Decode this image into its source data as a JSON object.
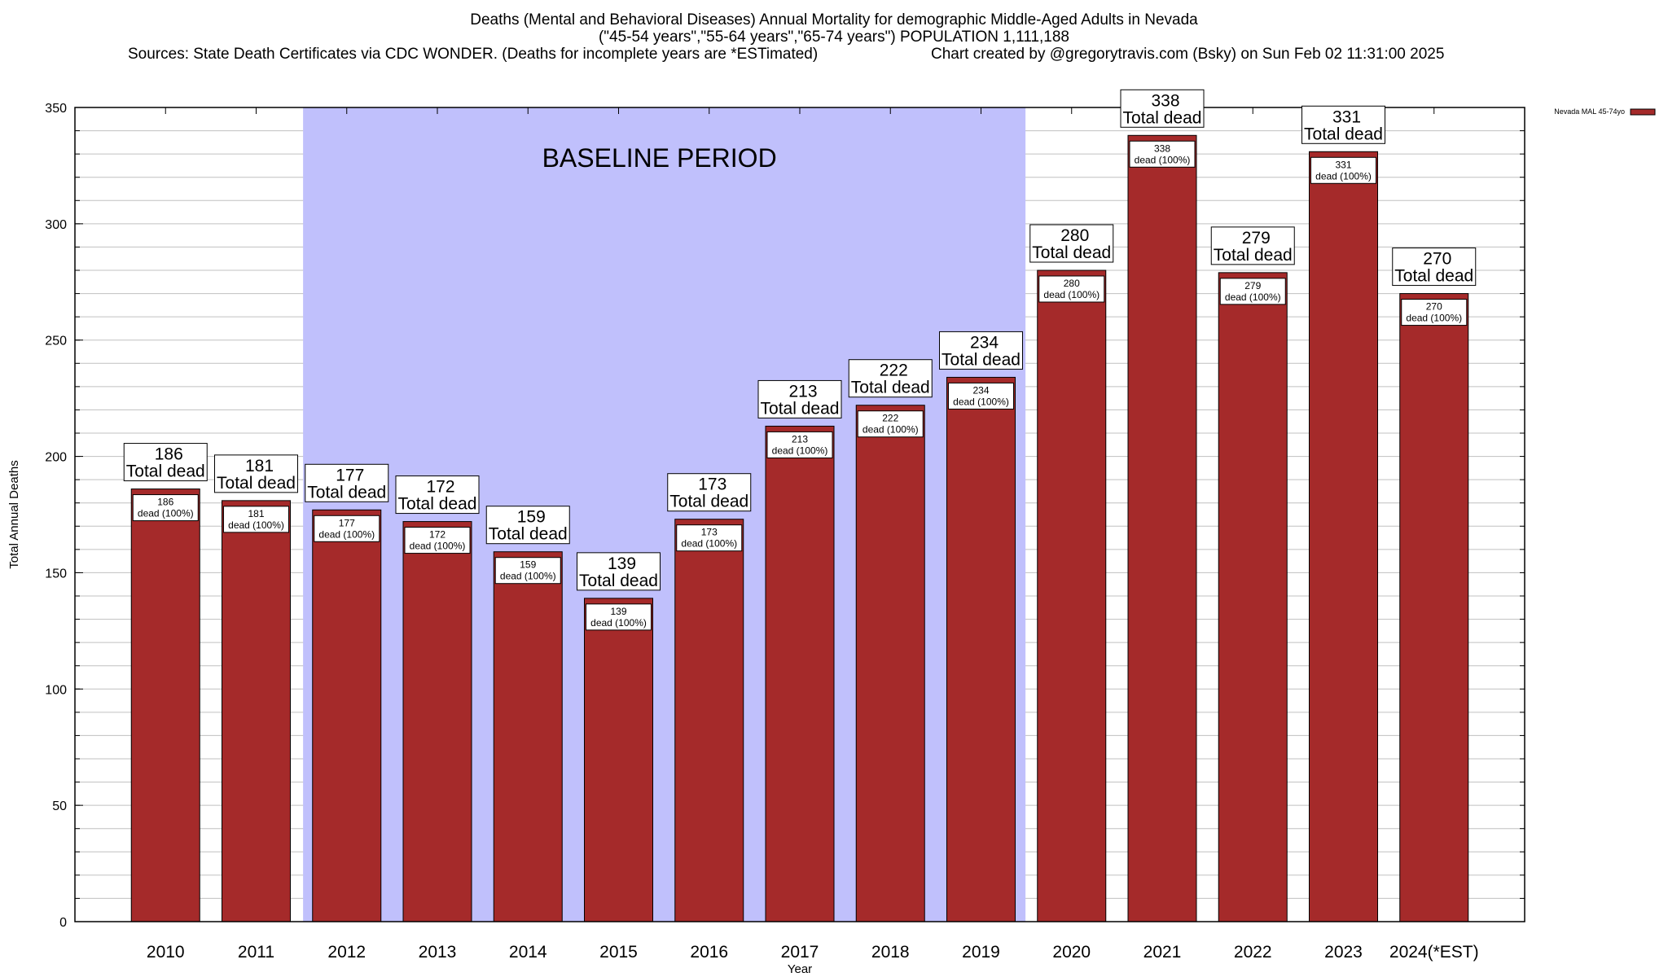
{
  "chart_data": {
    "type": "bar",
    "title": "Deaths (Mental and Behavioral Diseases) Annual Mortality for demographic Middle-Aged Adults in Nevada",
    "subtitle": "(\"45-54 years\",\"55-64 years\",\"65-74 years\") POPULATION 1,111,188",
    "sources": "Sources: State Death Certificates via CDC WONDER. (Deaths for incomplete years are *ESTimated)",
    "credit": "Chart created by @gregorytravis.com (Bsky) on Sun Feb 02 11:31:00 2025",
    "xlabel": "Year",
    "ylabel": "Total Annual Deaths",
    "ylim": [
      0,
      350
    ],
    "yticks": [
      0,
      50,
      100,
      150,
      200,
      250,
      300,
      350
    ],
    "minor_grid_step": 10,
    "grid": true,
    "legend": {
      "entry": "Nevada MAL 45-74yo",
      "placement": "top-right"
    },
    "categories": [
      "2010",
      "2011",
      "2012",
      "2013",
      "2014",
      "2015",
      "2016",
      "2017",
      "2018",
      "2019",
      "2020",
      "2021",
      "2022",
      "2023",
      "2024(*EST)"
    ],
    "values": [
      186,
      181,
      177,
      172,
      159,
      139,
      173,
      213,
      222,
      234,
      280,
      338,
      279,
      331,
      270
    ],
    "total_label_suffix": "Total dead",
    "inner_label_suffix": "dead (100%)",
    "annotation": {
      "text": "BASELINE PERIOD",
      "from_category": "2012",
      "to_category": "2019"
    },
    "colors": {
      "bar": "#a52a2a",
      "baseline_shade": "#c0c0fc",
      "grid": "#c0c0c0"
    }
  }
}
